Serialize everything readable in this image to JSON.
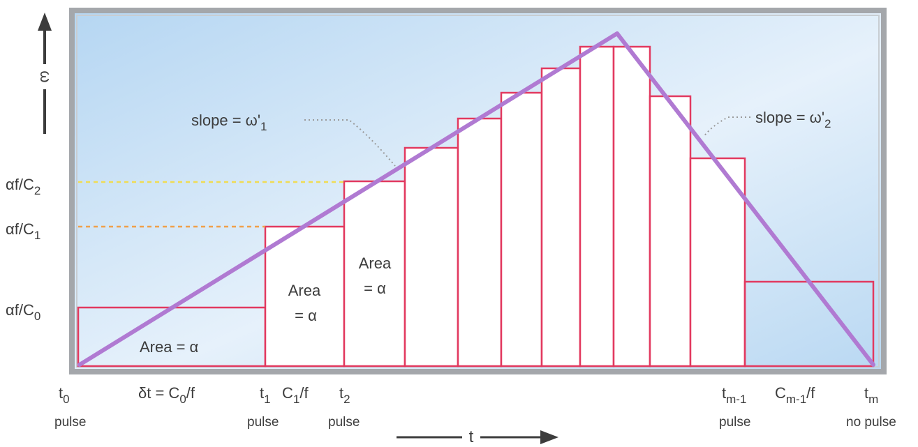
{
  "colors": {
    "panel_gradient_start": "#b7d7f2",
    "panel_gradient_end": "#f7fbff",
    "frame": "#9fa2a6",
    "bar_stroke": "#e2395f",
    "slope_line": "#b07ad2",
    "guide_c2": "#f2e25a",
    "guide_c1": "#f2a24a",
    "annotation_dots": "#9a9a9a",
    "text": "#3c3c3c"
  },
  "axes": {
    "omega_label": "ω",
    "time_label": "t"
  },
  "y_labels": [
    {
      "id": "c2",
      "base": "αf/C",
      "sub": "2"
    },
    {
      "id": "c1",
      "base": "αf/C",
      "sub": "1"
    },
    {
      "id": "c0",
      "base": "αf/C",
      "sub": "0"
    }
  ],
  "annotations": {
    "slope1_base": "slope = ω'",
    "slope1_sub": "1",
    "slope2_base": "slope = ω'",
    "slope2_sub": "2",
    "area_bottom": "Area = α",
    "area_word": "Area",
    "area_value": "= α"
  },
  "x_labels": {
    "t0_base": "t",
    "t0_sub": "0",
    "t0_pulse": "pulse",
    "dt_text": "δt = C",
    "dt_sub": "0",
    "dt_tail": "/f",
    "t1_base": "t",
    "t1_sub": "1",
    "t1_pulse": "pulse",
    "c1f_base": "C",
    "c1f_sub": "1",
    "c1f_tail": "/f",
    "t2_base": "t",
    "t2_sub": "2",
    "t2_pulse": "pulse",
    "tm1_base": "t",
    "tm1_sub": "m-1",
    "tm1_pulse": "pulse",
    "cm_base": "C",
    "cm_sub": "m-1",
    "cm_tail": "/f",
    "tm_base": "t",
    "tm_sub": "m",
    "tm_pulse": "no pulse"
  }
}
